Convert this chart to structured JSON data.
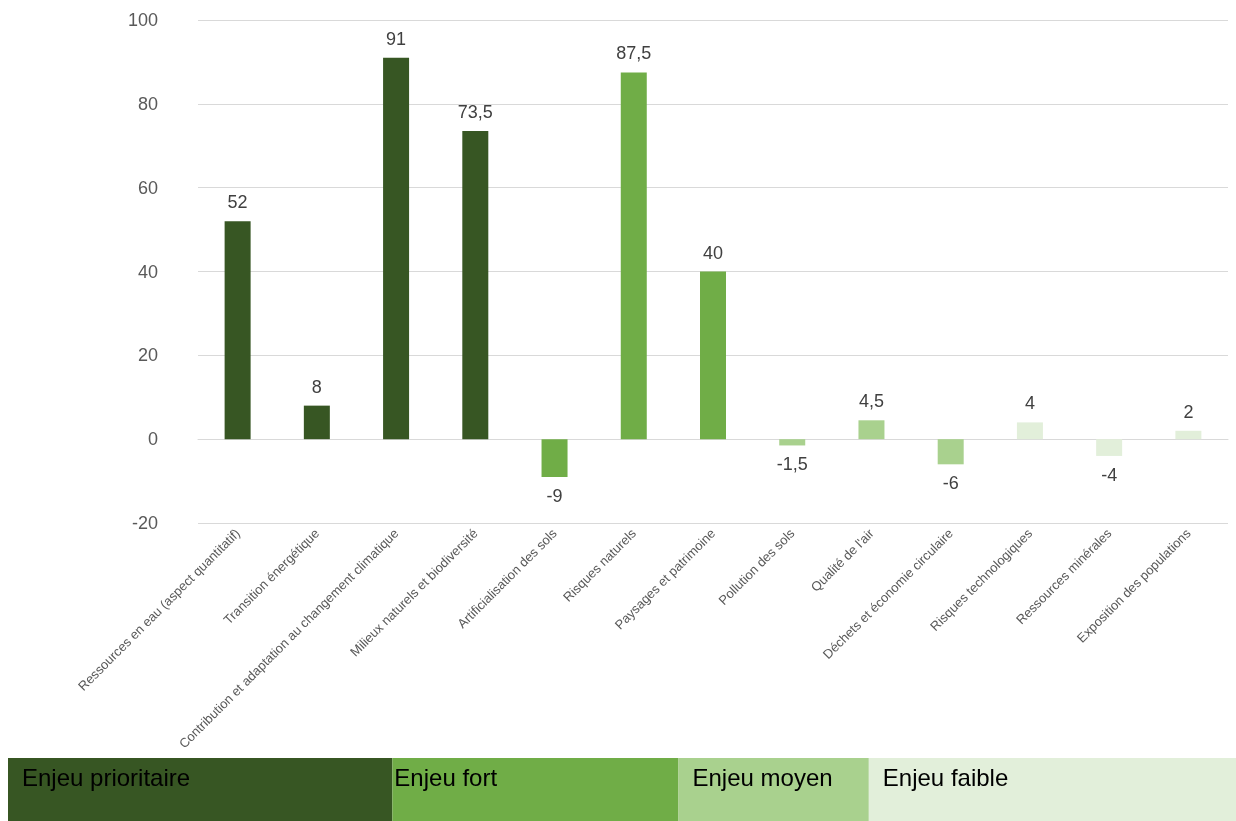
{
  "chart_data": {
    "type": "bar",
    "categories": [
      "Ressources en eau (aspect quantitatif)",
      "Transition énergétique",
      "Contribution et adaptation au changement climatique",
      "Milieux naturels et biodiversité",
      "Artificialisation des sols",
      "Risques naturels",
      "Paysages et patrimoine",
      "Pollution des sols",
      "Qualité de l'air",
      "Déchets et économie circulaire",
      "Risques technologiques",
      "Ressources minérales",
      "Exposition des populations"
    ],
    "series": [
      {
        "name": "Enjeu prioritaire",
        "color": "#375623",
        "values": [
          52,
          8,
          91,
          73.5,
          null,
          null,
          null,
          null,
          null,
          null,
          null,
          null,
          null
        ],
        "value_labels": [
          "52",
          "8",
          "91",
          "73,5",
          null,
          null,
          null,
          null,
          null,
          null,
          null,
          null,
          null
        ]
      },
      {
        "name": "Enjeu fort",
        "color": "#70ad47",
        "values": [
          null,
          null,
          null,
          null,
          -9,
          87.5,
          40,
          null,
          null,
          null,
          null,
          null,
          null
        ],
        "value_labels": [
          null,
          null,
          null,
          null,
          "-9",
          "87,5",
          "40",
          null,
          null,
          null,
          null,
          null,
          null
        ]
      },
      {
        "name": "Enjeu moyen",
        "color": "#a9d18e",
        "values": [
          null,
          null,
          null,
          null,
          null,
          null,
          null,
          -1.5,
          4.5,
          -6,
          null,
          null,
          null
        ],
        "value_labels": [
          null,
          null,
          null,
          null,
          null,
          null,
          null,
          "-1,5",
          "4,5",
          "-6",
          null,
          null,
          null
        ]
      },
      {
        "name": "Enjeu faible",
        "color": "#e2efda",
        "values": [
          null,
          null,
          null,
          null,
          null,
          null,
          null,
          null,
          null,
          null,
          4,
          -4,
          2
        ],
        "value_labels": [
          null,
          null,
          null,
          null,
          null,
          null,
          null,
          null,
          null,
          null,
          "4",
          "-4",
          "2"
        ]
      }
    ],
    "ylim": [
      -20,
      100
    ],
    "yticks": [
      -20,
      0,
      20,
      40,
      60,
      80,
      100
    ],
    "grid": "y",
    "legend": "bottom"
  }
}
